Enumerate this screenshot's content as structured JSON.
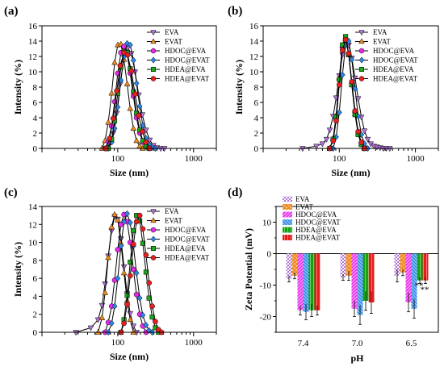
{
  "series_styles": {
    "EVA": {
      "color": "#b071d8",
      "marker": "tri-down"
    },
    "EVAT": {
      "color": "#f08a1c",
      "marker": "tri-up"
    },
    "HDOC@EVA": {
      "color": "#e828e8",
      "marker": "circle"
    },
    "HDOC@EVAT": {
      "color": "#2a86e8",
      "marker": "diamond"
    },
    "HDEA@EVA": {
      "color": "#1aa81a",
      "marker": "square"
    },
    "HDEA@EVAT": {
      "color": "#e62020",
      "marker": "circle"
    }
  },
  "chart_data": [
    {
      "panel": "(a)",
      "type": "line",
      "xlabel": "Size (nm)",
      "ylabel": "Intensity (%)",
      "x_scale": "log",
      "xlim": [
        10,
        2000
      ],
      "ylim": [
        0,
        16
      ],
      "x_ticks": [
        "100",
        "1000"
      ],
      "y_ticks": [
        "0",
        "2",
        "4",
        "6",
        "8",
        "10",
        "12",
        "14",
        "16"
      ],
      "legend_position": "top-right",
      "legend": [
        "EVA",
        "EVAT",
        "HDOC@EVA",
        "HDOC@EVAT",
        "HDEA@EVA",
        "HDEA@EVAT"
      ],
      "series": [
        {
          "name": "EVA",
          "x": [
            70,
            78,
            87,
            97,
            108,
            121,
            135,
            151,
            169,
            189,
            211,
            236,
            264,
            295,
            330,
            369,
            412
          ],
          "y": [
            0,
            0.6,
            2,
            4.6,
            8.4,
            12,
            13.1,
            12.4,
            10,
            7,
            4.4,
            2.4,
            1.1,
            0.4,
            0.1,
            0,
            0
          ]
        },
        {
          "name": "EVAT",
          "x": [
            62,
            68,
            75,
            83,
            91,
            100,
            110,
            121,
            133,
            146,
            161,
            177,
            195,
            214
          ],
          "y": [
            0,
            1,
            3.4,
            7.2,
            11.2,
            13.5,
            13.6,
            11.6,
            8.4,
            5.2,
            2.6,
            1,
            0.3,
            0
          ]
        },
        {
          "name": "HDOC@EVA",
          "x": [
            68,
            75,
            83,
            91,
            100,
            110,
            121,
            133,
            146,
            161,
            177,
            195,
            214,
            236,
            259
          ],
          "y": [
            0,
            0.9,
            2.9,
            6.1,
            9.8,
            12.5,
            13.3,
            12.3,
            9.8,
            6.8,
            4,
            2,
            0.8,
            0.2,
            0
          ]
        },
        {
          "name": "HDOC@EVAT",
          "x": [
            75,
            83,
            91,
            100,
            110,
            121,
            133,
            146,
            161,
            177,
            195,
            214,
            236,
            259,
            285,
            313
          ],
          "y": [
            0,
            0.8,
            2.6,
            5.4,
            8.9,
            12,
            13.7,
            13.5,
            11.5,
            8.5,
            5.5,
            3,
            1.3,
            0.5,
            0.1,
            0
          ]
        },
        {
          "name": "HDEA@EVA",
          "x": [
            75,
            83,
            91,
            100,
            110,
            121,
            133,
            146,
            161,
            177,
            195,
            214,
            236,
            259
          ],
          "y": [
            0,
            1.2,
            3.6,
            7.2,
            10.6,
            12.6,
            12.5,
            10.4,
            7.4,
            4.6,
            2.4,
            1,
            0.3,
            0
          ]
        },
        {
          "name": "HDEA@EVAT",
          "x": [
            70,
            78,
            87,
            97,
            108,
            121,
            135,
            151,
            169,
            189,
            211,
            236,
            264
          ],
          "y": [
            0,
            1.3,
            3.9,
            7.5,
            10.8,
            12.5,
            12.2,
            10.1,
            7.1,
            4.3,
            2.2,
            0.8,
            0
          ]
        }
      ]
    },
    {
      "panel": "(b)",
      "type": "line",
      "xlabel": "Size (nm)",
      "ylabel": "Intensity (%)",
      "x_scale": "log",
      "xlim": [
        10,
        2000
      ],
      "ylim": [
        0,
        16
      ],
      "x_ticks": [
        "100",
        "1000"
      ],
      "y_ticks": [
        "0",
        "2",
        "4",
        "6",
        "8",
        "10",
        "12",
        "14",
        "16"
      ],
      "legend_position": "top-right",
      "legend": [
        "EVA",
        "EVAT",
        "HDOC@EVA",
        "HDOC@EVAT",
        "HDEA@EVA",
        "HDEA@EVAT"
      ],
      "series": [
        {
          "name": "EVA",
          "x": [
            33,
            50,
            60,
            68,
            75,
            83,
            91,
            100,
            110,
            121,
            133,
            146,
            161,
            177,
            195,
            214,
            236,
            259,
            285,
            313,
            344,
            378,
            416,
            460
          ],
          "y": [
            0,
            0.3,
            0.6,
            1.2,
            2.4,
            4.2,
            6.6,
            9.5,
            12.2,
            13.6,
            13.5,
            11.8,
            9.2,
            6.5,
            4.1,
            2.3,
            1.2,
            0.6,
            0.3,
            0.2,
            0.1,
            0,
            0,
            0
          ]
        },
        {
          "name": "EVAT",
          "x": [
            75,
            83,
            91,
            100,
            110,
            121,
            133,
            146,
            161,
            177,
            195,
            214
          ],
          "y": [
            0,
            1.3,
            4.3,
            9.2,
            13.4,
            14.3,
            12.2,
            8.3,
            4.5,
            2,
            0.6,
            0
          ]
        },
        {
          "name": "HDOC@EVA",
          "x": [
            75,
            83,
            91,
            100,
            110,
            121,
            133,
            146,
            161,
            177,
            195,
            214
          ],
          "y": [
            0,
            1.1,
            4,
            9,
            13.2,
            14.2,
            12.3,
            8.5,
            4.7,
            2.1,
            0.7,
            0
          ]
        },
        {
          "name": "HDOC@EVAT",
          "x": [
            83,
            91,
            100,
            110,
            121,
            133,
            146,
            161,
            177,
            195,
            214,
            236
          ],
          "y": [
            0,
            1.5,
            4.7,
            9.6,
            13.5,
            14,
            11.6,
            7.8,
            4.2,
            1.8,
            0.6,
            0
          ]
        },
        {
          "name": "HDEA@EVA",
          "x": [
            75,
            83,
            91,
            100,
            110,
            121,
            133,
            146,
            161,
            177,
            195,
            214
          ],
          "y": [
            0,
            1.2,
            4.1,
            9,
            13.5,
            14.6,
            12.3,
            8.3,
            4.4,
            1.8,
            0.5,
            0
          ]
        },
        {
          "name": "HDEA@EVAT",
          "x": [
            75,
            83,
            91,
            100,
            110,
            121,
            133,
            146,
            161,
            177,
            195,
            214
          ],
          "y": [
            0,
            1,
            3.6,
            8.3,
            12.8,
            14.2,
            12.4,
            8.7,
            4.9,
            2.2,
            0.8,
            0
          ]
        }
      ]
    },
    {
      "panel": "(c)",
      "type": "line",
      "xlabel": "Size (nm)",
      "ylabel": "Intensity (%)",
      "x_scale": "log",
      "xlim": [
        10,
        2000
      ],
      "ylim": [
        0,
        14
      ],
      "x_ticks": [
        "100",
        "1000"
      ],
      "y_ticks": [
        "0",
        "2",
        "4",
        "6",
        "8",
        "10",
        "12",
        "14"
      ],
      "legend_position": "top-right",
      "legend": [
        "EVA",
        "EVAT",
        "HDOC@EVA",
        "HDOC@EVAT",
        "HDEA@EVA",
        "HDEA@EVAT"
      ],
      "series": [
        {
          "name": "EVA",
          "x": [
            28,
            44,
            55,
            62,
            68,
            75,
            83,
            91,
            100,
            110,
            121,
            133,
            146,
            161,
            177
          ],
          "y": [
            0,
            0.5,
            1.4,
            3,
            5.4,
            8.5,
            11.3,
            12.9,
            12.6,
            10.4,
            7.3,
            4.3,
            2.1,
            0.7,
            0
          ]
        },
        {
          "name": "EVAT",
          "x": [
            55,
            62,
            68,
            75,
            83,
            91,
            100,
            110,
            121,
            133,
            146,
            161
          ],
          "y": [
            0,
            1.6,
            4.4,
            8.3,
            11.7,
            13.1,
            12.5,
            9.9,
            6.6,
            3.5,
            1.4,
            0
          ]
        },
        {
          "name": "HDOC@EVA",
          "x": [
            68,
            75,
            83,
            91,
            100,
            110,
            121,
            133,
            146,
            161,
            177,
            195,
            214,
            236
          ],
          "y": [
            0,
            1.1,
            2.9,
            5.8,
            9.2,
            12,
            13.1,
            12.3,
            10,
            7,
            4.2,
            2,
            0.7,
            0
          ]
        },
        {
          "name": "HDOC@EVAT",
          "x": [
            75,
            83,
            91,
            100,
            110,
            121,
            133,
            146,
            161,
            177,
            195,
            214,
            236,
            259,
            285
          ],
          "y": [
            0,
            1,
            2.9,
            6,
            9.6,
            12.3,
            13.2,
            12.2,
            9.6,
            6.6,
            3.8,
            1.9,
            0.8,
            0.2,
            0
          ]
        },
        {
          "name": "HDEA@EVA",
          "x": [
            110,
            121,
            133,
            146,
            161,
            177,
            195,
            214,
            236,
            259,
            285,
            313,
            344
          ],
          "y": [
            0,
            1.4,
            4.1,
            7.8,
            11.3,
            13,
            12.4,
            9.9,
            6.7,
            3.8,
            1.7,
            0.5,
            0
          ]
        },
        {
          "name": "HDEA@EVAT",
          "x": [
            110,
            121,
            133,
            146,
            161,
            177,
            195,
            214,
            236,
            259,
            285,
            313,
            344,
            378
          ],
          "y": [
            0,
            1,
            3.1,
            6.3,
            9.8,
            12.3,
            13,
            11.5,
            8.6,
            5.5,
            2.9,
            1.2,
            0.3,
            0
          ]
        }
      ]
    },
    {
      "panel": "(d)",
      "type": "bar",
      "xlabel": "pH",
      "ylabel": "Zeta Potential (mV)",
      "categories": [
        "7.4",
        "7.0",
        "6.5"
      ],
      "ylim": [
        -25,
        15
      ],
      "y_ticks": [
        "-20",
        "-10",
        "0",
        "10"
      ],
      "legend_position": "top-left",
      "legend": [
        "EVA",
        "EVAT",
        "HDOC@EVA",
        "HDOC@EVAT",
        "HDEA@EVA",
        "HDEA@EVAT"
      ],
      "annotations": [
        "**",
        "**"
      ],
      "series": [
        {
          "name": "EVA",
          "values": [
            -8.0,
            -7.5,
            -7.0
          ],
          "errors": [
            1.0,
            1.0,
            2.0
          ]
        },
        {
          "name": "EVAT",
          "values": [
            -7.0,
            -7.0,
            -6.0
          ],
          "errors": [
            1.0,
            1.5,
            1.0
          ]
        },
        {
          "name": "HDOC@EVA",
          "values": [
            -18.0,
            -17.5,
            -15.5
          ],
          "errors": [
            1.5,
            2.5,
            3.0
          ]
        },
        {
          "name": "HDOC@EVAT",
          "values": [
            -18.5,
            -19.5,
            -17.5
          ],
          "errors": [
            2.5,
            3.0,
            3.0
          ]
        },
        {
          "name": "HDEA@EVA",
          "values": [
            -18.0,
            -15.0,
            -8.5
          ],
          "errors": [
            2.0,
            3.0,
            1.0
          ]
        },
        {
          "name": "HDEA@EVAT",
          "values": [
            -18.0,
            -15.5,
            -8.5
          ],
          "errors": [
            1.5,
            3.5,
            1.0
          ]
        }
      ]
    }
  ]
}
